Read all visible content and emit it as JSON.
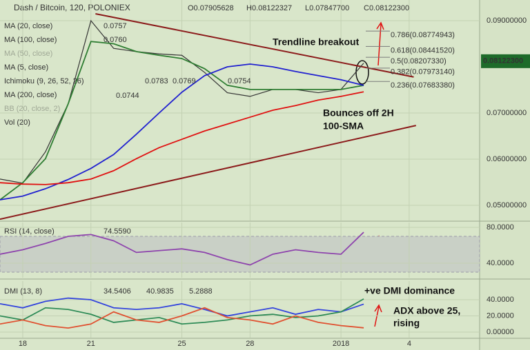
{
  "chart_data": [
    {
      "type": "line",
      "title": "Dash / Bitcoin, 120, POLONIEX",
      "ohlc": [
        "O0.07905628",
        "H0.08122327",
        "L0.07847700",
        "C0.08122300"
      ],
      "indicators": [
        "MA (50, close)",
        "MA (5, close)",
        "Ichimoku (9, 26, 52, 26)",
        "BB (20, close, 2)",
        "Vol (20)"
      ],
      "indicator_labels": [
        "0.0757",
        "0.0760",
        "0.0783",
        "0.0769",
        "0.0754",
        "0.0744"
      ],
      "annotations": [
        "Trendline breakout",
        "Bounces off 2H",
        "100-SMA"
      ],
      "x": [
        -1,
        0,
        1,
        2,
        3,
        4,
        5,
        6,
        7,
        8,
        9,
        10,
        11,
        12,
        13,
        14,
        15
      ],
      "series": [
        {
          "color": "#333333",
          "values": [
            0.0557,
            0.0548,
            0.0616,
            0.072,
            0.09,
            0.084,
            0.0833,
            0.0828,
            0.0825,
            0.0788,
            0.0744,
            0.0736,
            0.0751,
            0.0751,
            0.0744,
            0.0751,
            0.0808
          ]
        },
        {
          "name": "MA (20, close)",
          "color": "#2e7d32",
          "values": [
            0.0512,
            0.0549,
            0.0601,
            0.072,
            0.0855,
            0.085,
            0.0833,
            0.0825,
            0.0818,
            0.0796,
            0.076,
            0.0751,
            0.0751,
            0.0751,
            0.0751,
            0.0751,
            0.076
          ]
        },
        {
          "name": "MA (100, close)",
          "color": "#2020d0",
          "values": [
            0.0512,
            0.052,
            0.0536,
            0.0556,
            0.058,
            0.061,
            0.0654,
            0.07,
            0.0745,
            0.0781,
            0.08,
            0.0806,
            0.08,
            0.079,
            0.0781,
            0.0772,
            0.076
          ]
        },
        {
          "name": "MA (200, close)",
          "color": "#e01010",
          "values": [
            0.0549,
            0.0546,
            0.0545,
            0.0549,
            0.0557,
            0.0575,
            0.0601,
            0.0625,
            0.0643,
            0.0661,
            0.0676,
            0.0691,
            0.0706,
            0.0716,
            0.0728,
            0.0736,
            0.0746
          ]
        }
      ],
      "trendlines": [
        {
          "x": [
            3.2,
            17.2
          ],
          "values": [
            0.0915,
            0.0778
          ]
        },
        {
          "x": [
            -1,
            17.3
          ],
          "values": [
            0.047,
            0.0673
          ]
        }
      ],
      "trendline_color": "#8b1a1a",
      "fib_levels": [
        {
          "value": 0.08774943,
          "label": "0.786(0.08774943)"
        },
        {
          "value": 0.0844152,
          "label": "0.618(0.08441520)"
        },
        {
          "value": 0.0820733,
          "label": "0.5(0.08207330)"
        },
        {
          "value": 0.0797314,
          "label": "0.382(0.07973140)"
        },
        {
          "value": 0.0768338,
          "label": "0.236(0.07683380)"
        }
      ],
      "last_price": {
        "value": 0.081223,
        "label": "0.08122300"
      },
      "xlim": [
        -1,
        20.1
      ],
      "ylim": [
        0.04672,
        0.09448
      ],
      "yticks": [
        {
          "value": 0.09,
          "label": "0.09000000"
        },
        {
          "value": 0.07,
          "label": "0.07000000"
        },
        {
          "value": 0.06,
          "label": "0.06000000"
        },
        {
          "value": 0.05,
          "label": "0.05000000"
        }
      ],
      "grid": true
    },
    {
      "type": "line",
      "title": "RSI (14, close)",
      "x": [
        -1,
        0,
        1,
        2,
        3,
        4,
        5,
        6,
        7,
        8,
        9,
        10,
        11,
        12,
        13,
        14,
        15
      ],
      "series": [
        {
          "color": "#8e44ad",
          "values": [
            50,
            55,
            62,
            70,
            72,
            65,
            52,
            54,
            56,
            52,
            44,
            38,
            50,
            55,
            52,
            50,
            74.559
          ],
          "value_labels": [
            null,
            null,
            null,
            null,
            null,
            null,
            null,
            null,
            null,
            null,
            null,
            null,
            null,
            null,
            null,
            null,
            "74.5590"
          ]
        }
      ],
      "band": [
        30,
        70
      ],
      "xlim": [
        -1,
        20.1
      ],
      "ylim": [
        23.8,
        85.4
      ],
      "yticks": [
        {
          "value": 80,
          "label": "80.0000"
        },
        {
          "value": 40,
          "label": "40.0000"
        }
      ],
      "grid": true
    },
    {
      "type": "line",
      "title": "DMI (13, 8)",
      "annotations": [
        "+ve DMI dominance",
        "ADX above 25,",
        "rising"
      ],
      "x": [
        -1,
        0,
        1,
        2,
        3,
        4,
        5,
        6,
        7,
        8,
        9,
        10,
        11,
        12,
        13,
        14,
        15
      ],
      "series": [
        {
          "color": "#3344dd",
          "values": [
            35,
            30,
            38,
            42,
            40,
            30,
            28,
            30,
            35,
            28,
            20,
            25,
            30,
            22,
            28,
            25,
            34.5406
          ]
        },
        {
          "color": "#2e8b57",
          "values": [
            20,
            15,
            30,
            28,
            22,
            12,
            15,
            18,
            10,
            12,
            15,
            20,
            22,
            18,
            20,
            25,
            40.9835
          ]
        },
        {
          "color": "#e05030",
          "values": [
            10,
            15,
            8,
            5,
            10,
            25,
            15,
            12,
            20,
            30,
            18,
            15,
            10,
            20,
            12,
            8,
            5.2888
          ]
        }
      ],
      "xlim": [
        -1,
        20.1
      ],
      "ylim": [
        -6.8,
        63
      ],
      "yticks": [
        {
          "value": 40,
          "label": "40.0000"
        },
        {
          "value": 20,
          "label": "20.0000"
        },
        {
          "value": 0,
          "label": "0.00000"
        }
      ],
      "xticks": [
        {
          "value": 0,
          "label": "18"
        },
        {
          "value": 3,
          "label": "21"
        },
        {
          "value": 7,
          "label": "25"
        },
        {
          "value": 10,
          "label": "28"
        },
        {
          "value": 14,
          "label": "2018"
        },
        {
          "value": 17,
          "label": "4"
        }
      ],
      "grid": true
    }
  ]
}
